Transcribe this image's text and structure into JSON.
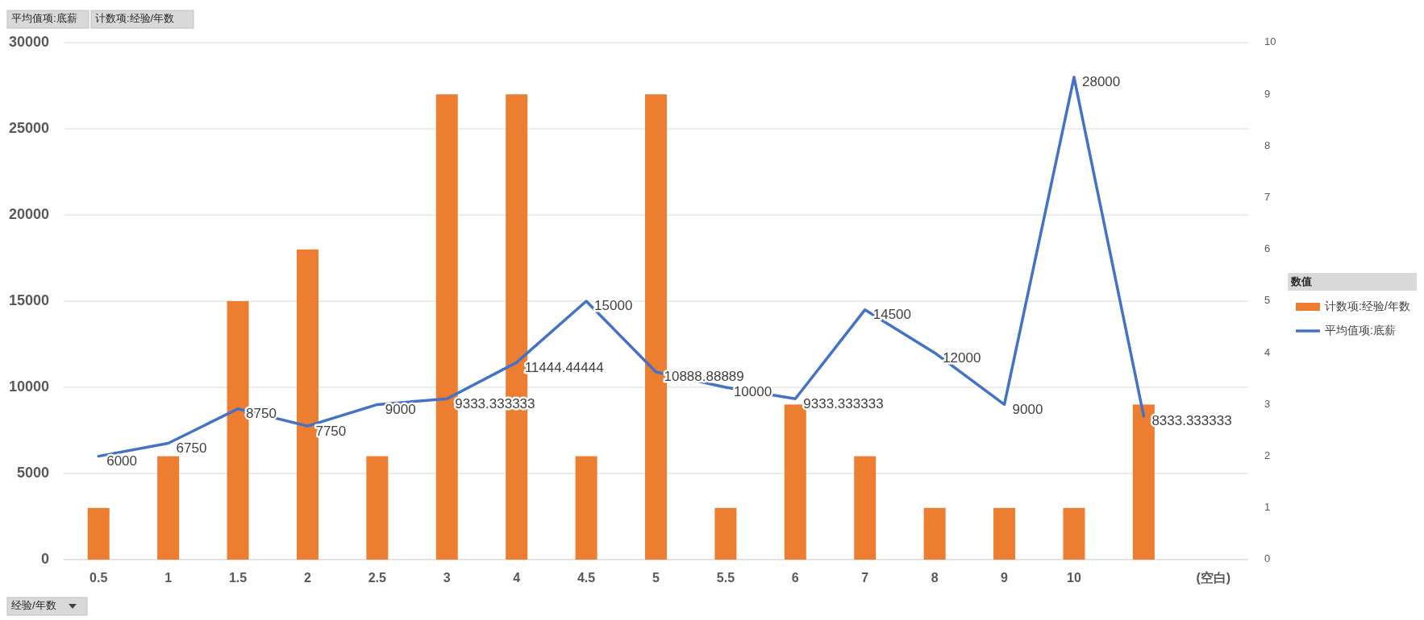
{
  "chart_data": {
    "type": "bar",
    "categories": [
      "0.5",
      "1",
      "1.5",
      "2",
      "2.5",
      "3",
      "4",
      "4.5",
      "5",
      "5.5",
      "6",
      "7",
      "8",
      "9",
      "10",
      null,
      "(空白)"
    ],
    "series": [
      {
        "name": "计数项:经验/年数",
        "axis": "y2",
        "color": "#ed7d31",
        "values": [
          1,
          2,
          5,
          6,
          2,
          9,
          9,
          2,
          9,
          1,
          3,
          2,
          1,
          1,
          1,
          3,
          null
        ]
      },
      {
        "name": "平均值项:底薪",
        "type": "line",
        "color": "#4472c4",
        "values": [
          6000,
          6750,
          8750,
          7750,
          9000,
          9333.333333,
          11444.44444,
          15000,
          10888.88889,
          10000,
          9333.333333,
          14500,
          12000,
          9000,
          28000,
          8333.333333,
          null
        ],
        "value_labels": [
          "6000",
          "6750",
          "8750",
          "7750",
          "9000",
          "9333.333333",
          "11444.44444",
          "15000",
          "10888.88889",
          "10000",
          "9333.333333",
          "14500",
          "12000",
          "9000",
          "28000",
          "8333.333333",
          null
        ]
      }
    ],
    "ylim": [
      0,
      30000
    ],
    "yticks": [
      0,
      5000,
      10000,
      15000,
      20000,
      25000,
      30000
    ],
    "y2lim": [
      0,
      10
    ],
    "y2ticks": [
      0,
      1,
      2,
      3,
      4,
      5,
      6,
      7,
      8,
      9,
      10
    ],
    "grid": "y",
    "legend": "right",
    "legend_title": "数值",
    "annotations": [
      "平均值项:底薪",
      "计数项:经验/年数",
      "经验/年数"
    ]
  }
}
